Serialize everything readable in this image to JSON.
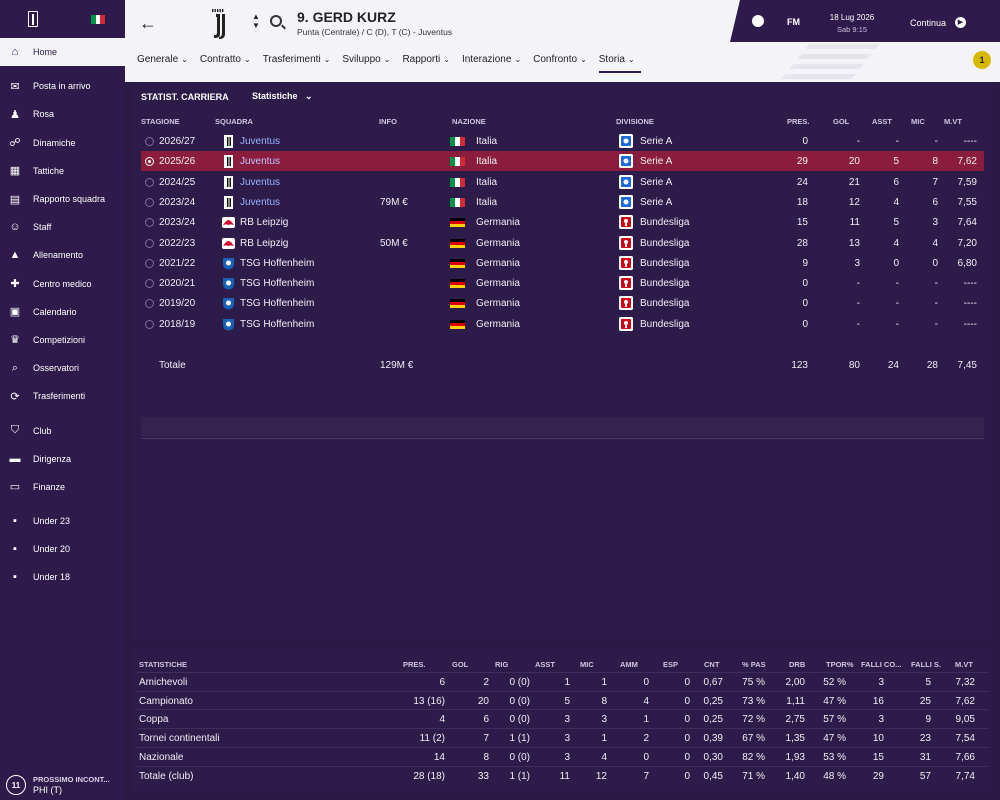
{
  "sidebar": {
    "items": [
      {
        "label": "Home",
        "icon": "home-icon",
        "active": true
      },
      {
        "label": "Posta in arrivo",
        "icon": "inbox-icon"
      },
      {
        "label": "Rosa",
        "icon": "squad-icon"
      },
      {
        "label": "Dinamiche",
        "icon": "dynamics-icon"
      },
      {
        "label": "Tattiche",
        "icon": "tactics-icon"
      },
      {
        "label": "Rapporto squadra",
        "icon": "report-icon"
      },
      {
        "label": "Staff",
        "icon": "staff-icon"
      },
      {
        "label": "Allenamento",
        "icon": "training-icon"
      },
      {
        "label": "Centro medico",
        "icon": "medical-icon"
      },
      {
        "label": "Calendario",
        "icon": "calendar-icon"
      },
      {
        "label": "Competizioni",
        "icon": "trophy-icon"
      },
      {
        "label": "Osservatori",
        "icon": "scout-icon"
      },
      {
        "label": "Trasferimenti",
        "icon": "transfer-icon"
      },
      {
        "label": "Club",
        "icon": "club-icon"
      },
      {
        "label": "Dirigenza",
        "icon": "board-icon"
      },
      {
        "label": "Finanze",
        "icon": "finance-icon"
      },
      {
        "label": "Under 23",
        "icon": "u23-icon"
      },
      {
        "label": "Under 20",
        "icon": "u20-icon"
      },
      {
        "label": "Under 18",
        "icon": "u18-icon"
      }
    ],
    "next_match": {
      "badge": "11",
      "label": "PROSSIMO INCONT...",
      "opponent": "PHI (T)"
    }
  },
  "header": {
    "player_name": "9. GERD KURZ",
    "player_sub": "Punta (Centrale) / C (D), T (C) - Juventus",
    "fm_label": "FM",
    "date": "18 Lug 2026",
    "time": "Sab 9:15",
    "continue_label": "Continua",
    "alert_count": "1"
  },
  "tabs": [
    {
      "label": "Generale"
    },
    {
      "label": "Contratto"
    },
    {
      "label": "Trasferimenti"
    },
    {
      "label": "Sviluppo"
    },
    {
      "label": "Rapporti"
    },
    {
      "label": "Interazione"
    },
    {
      "label": "Confronto"
    },
    {
      "label": "Storia",
      "active": true
    }
  ],
  "career": {
    "title": "STATIST. CARRIERA",
    "dropdown": "Statistiche",
    "columns": [
      "STAGIONE",
      "SQUADRA",
      "INFO",
      "NAZIONE",
      "DIVISIONE",
      "PRES.",
      "GOL",
      "ASST",
      "MIC",
      "M.VT"
    ],
    "rows": [
      {
        "season": "2026/27",
        "team": "Juventus",
        "info": "",
        "nation": "Italia",
        "division": "Serie A",
        "pres": "0",
        "gol": "-",
        "asst": "-",
        "mic": "-",
        "mvt": "----",
        "club": "juve",
        "flag": "it",
        "league": "seriea"
      },
      {
        "season": "2025/26",
        "team": "Juventus",
        "info": "",
        "nation": "Italia",
        "division": "Serie A",
        "pres": "29",
        "gol": "20",
        "asst": "5",
        "mic": "8",
        "mvt": "7,62",
        "club": "juve",
        "flag": "it",
        "league": "seriea",
        "selected": true
      },
      {
        "season": "2024/25",
        "team": "Juventus",
        "info": "",
        "nation": "Italia",
        "division": "Serie A",
        "pres": "24",
        "gol": "21",
        "asst": "6",
        "mic": "7",
        "mvt": "7,59",
        "club": "juve",
        "flag": "it",
        "league": "seriea"
      },
      {
        "season": "2023/24",
        "team": "Juventus",
        "info": "79M €",
        "nation": "Italia",
        "division": "Serie A",
        "pres": "18",
        "gol": "12",
        "asst": "4",
        "mic": "6",
        "mvt": "7,55",
        "club": "juve",
        "flag": "it",
        "league": "seriea"
      },
      {
        "season": "2023/24",
        "team": "RB Leipzig",
        "info": "",
        "nation": "Germania",
        "division": "Bundesliga",
        "pres": "15",
        "gol": "11",
        "asst": "5",
        "mic": "3",
        "mvt": "7,64",
        "club": "rbl",
        "flag": "de",
        "league": "bundes"
      },
      {
        "season": "2022/23",
        "team": "RB Leipzig",
        "info": "50M €",
        "nation": "Germania",
        "division": "Bundesliga",
        "pres": "28",
        "gol": "13",
        "asst": "4",
        "mic": "4",
        "mvt": "7,20",
        "club": "rbl",
        "flag": "de",
        "league": "bundes"
      },
      {
        "season": "2021/22",
        "team": "TSG Hoffenheim",
        "info": "",
        "nation": "Germania",
        "division": "Bundesliga",
        "pres": "9",
        "gol": "3",
        "asst": "0",
        "mic": "0",
        "mvt": "6,80",
        "club": "tsg",
        "flag": "de",
        "league": "bundes"
      },
      {
        "season": "2020/21",
        "team": "TSG Hoffenheim",
        "info": "",
        "nation": "Germania",
        "division": "Bundesliga",
        "pres": "0",
        "gol": "-",
        "asst": "-",
        "mic": "-",
        "mvt": "----",
        "club": "tsg",
        "flag": "de",
        "league": "bundes"
      },
      {
        "season": "2019/20",
        "team": "TSG Hoffenheim",
        "info": "",
        "nation": "Germania",
        "division": "Bundesliga",
        "pres": "0",
        "gol": "-",
        "asst": "-",
        "mic": "-",
        "mvt": "----",
        "club": "tsg",
        "flag": "de",
        "league": "bundes"
      },
      {
        "season": "2018/19",
        "team": "TSG Hoffenheim",
        "info": "",
        "nation": "Germania",
        "division": "Bundesliga",
        "pres": "0",
        "gol": "-",
        "asst": "-",
        "mic": "-",
        "mvt": "----",
        "club": "tsg",
        "flag": "de",
        "league": "bundes"
      }
    ],
    "total": {
      "label": "Totale",
      "info": "129M €",
      "pres": "123",
      "gol": "80",
      "asst": "24",
      "mic": "28",
      "mvt": "7,45"
    }
  },
  "stats": {
    "columns": [
      "STATISTICHE",
      "PRES.",
      "GOL",
      "RIG",
      "ASST",
      "MIC",
      "AMM",
      "ESP",
      "CNT",
      "% PAS",
      "DRB",
      "TPOR%",
      "FALLI CO...",
      "FALLI S.",
      "M.VT"
    ],
    "rows": [
      [
        "Amichevoli",
        "6",
        "2",
        "0 (0)",
        "1",
        "1",
        "0",
        "0",
        "0,67",
        "75 %",
        "2,00",
        "52 %",
        "3",
        "5",
        "7,32"
      ],
      [
        "Campionato",
        "13 (16)",
        "20",
        "0 (0)",
        "5",
        "8",
        "4",
        "0",
        "0,25",
        "73 %",
        "1,11",
        "47 %",
        "16",
        "25",
        "7,62"
      ],
      [
        "Coppa",
        "4",
        "6",
        "0 (0)",
        "3",
        "3",
        "1",
        "0",
        "0,25",
        "72 %",
        "2,75",
        "57 %",
        "3",
        "9",
        "9,05"
      ],
      [
        "Tornei continentali",
        "11 (2)",
        "7",
        "1 (1)",
        "3",
        "1",
        "2",
        "0",
        "0,39",
        "67 %",
        "1,35",
        "47 %",
        "10",
        "23",
        "7,54"
      ],
      [
        "Nazionale",
        "14",
        "8",
        "0 (0)",
        "3",
        "4",
        "0",
        "0",
        "0,30",
        "82 %",
        "1,93",
        "53 %",
        "15",
        "31",
        "7,66"
      ],
      [
        "Totale (club)",
        "28 (18)",
        "33",
        "1 (1)",
        "11",
        "12",
        "7",
        "0",
        "0,45",
        "71 %",
        "1,40",
        "48 %",
        "29",
        "57",
        "7,74"
      ]
    ]
  },
  "colors": {
    "sidebar": "#2e1b4b",
    "panel": "#2d1b4a",
    "selected_row": "#8a1d3e",
    "link": "#9ab4ff"
  }
}
